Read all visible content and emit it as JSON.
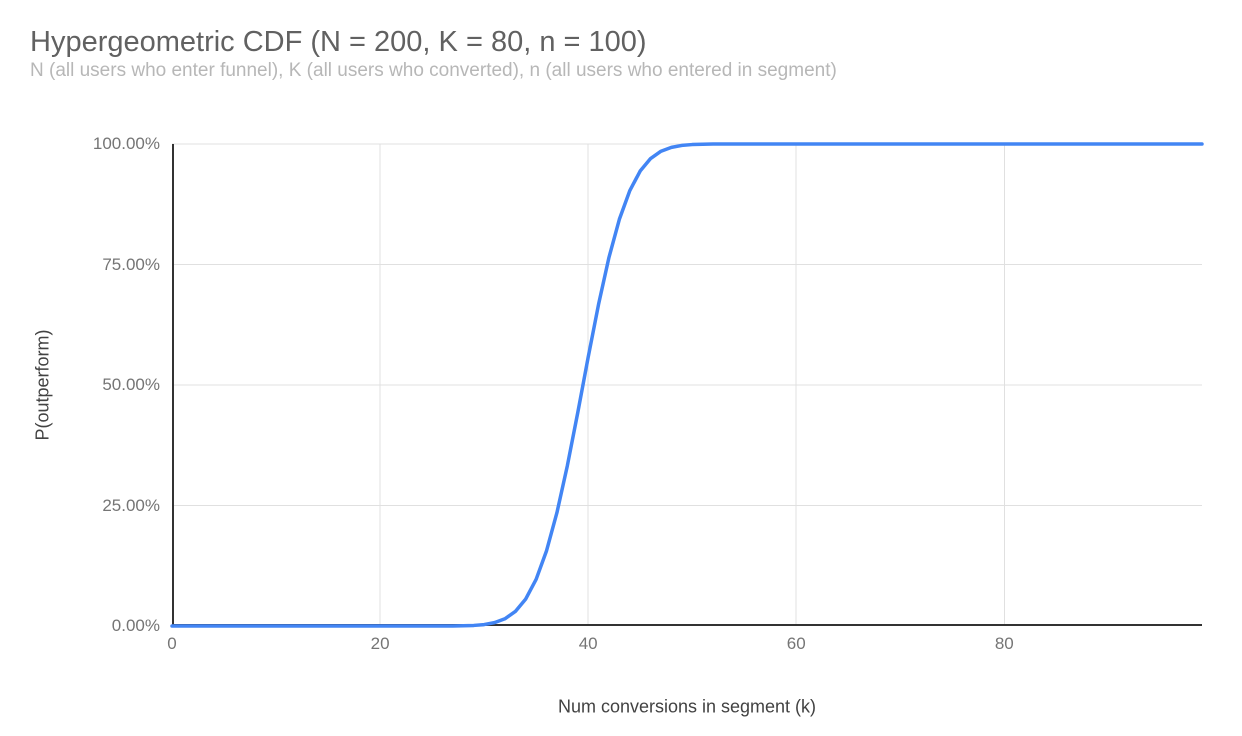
{
  "chart_data": {
    "type": "line",
    "title": "Hypergeometric CDF (N = 200, K = 80, n = 100)",
    "subtitle": "N (all users who enter funnel), K (all users who converted), n (all users who entered in segment)",
    "xlabel": "Num conversions in segment (k)",
    "ylabel": "P(outperform)",
    "xlim": [
      0,
      99
    ],
    "ylim": [
      0,
      1
    ],
    "grid": true,
    "legend": "none",
    "x_ticks": [
      0,
      20,
      40,
      60,
      80
    ],
    "x_tick_labels": [
      "0",
      "20",
      "40",
      "60",
      "80"
    ],
    "y_ticks": [
      0,
      0.25,
      0.5,
      0.75,
      1
    ],
    "y_tick_labels": [
      "0.00%",
      "25.00%",
      "50.00%",
      "75.00%",
      "100.00%"
    ],
    "series": [
      {
        "name": "P(outperform)",
        "x": [
          0,
          1,
          2,
          3,
          4,
          5,
          6,
          7,
          8,
          9,
          10,
          11,
          12,
          13,
          14,
          15,
          16,
          17,
          18,
          19,
          20,
          21,
          22,
          23,
          24,
          25,
          26,
          27,
          28,
          29,
          30,
          31,
          32,
          33,
          34,
          35,
          36,
          37,
          38,
          39,
          40,
          41,
          42,
          43,
          44,
          45,
          46,
          47,
          48,
          49,
          50,
          51,
          52,
          53,
          54,
          55,
          56,
          57,
          58,
          59,
          60,
          61,
          62,
          63,
          64,
          65,
          66,
          67,
          68,
          69,
          70,
          71,
          72,
          73,
          74,
          75,
          76,
          77,
          78,
          79,
          80,
          81,
          82,
          83,
          84,
          85,
          86,
          87,
          88,
          89,
          90,
          91,
          92,
          93,
          94,
          95,
          96,
          97,
          98,
          99
        ],
        "y": [
          0,
          0,
          0,
          0,
          0,
          0,
          0,
          0,
          0,
          0,
          0,
          0,
          0,
          0,
          0,
          0,
          0,
          0,
          0,
          0,
          0,
          0,
          0,
          0,
          0,
          1e-05,
          3e-05,
          0.00013,
          0.00041,
          0.00116,
          0.00296,
          0.00694,
          0.01503,
          0.03014,
          0.05604,
          0.0969,
          0.15618,
          0.23532,
          0.33258,
          0.44265,
          0.55735,
          0.66742,
          0.76468,
          0.84382,
          0.9031,
          0.94396,
          0.96986,
          0.98497,
          0.99306,
          0.99704,
          0.99884,
          0.99959,
          0.99987,
          0.99997,
          0.99999,
          1,
          1,
          1,
          1,
          1,
          1,
          1,
          1,
          1,
          1,
          1,
          1,
          1,
          1,
          1,
          1,
          1,
          1,
          1,
          1,
          1,
          1,
          1,
          1,
          1,
          1,
          1,
          1,
          1,
          1,
          1,
          1,
          1,
          1,
          1,
          1,
          1,
          1,
          1,
          1,
          1,
          1,
          1,
          1,
          1
        ]
      }
    ],
    "colors": {
      "series_line": "#4285f4",
      "gridline": "#e0e0e0",
      "axis_line": "#333333",
      "title_text": "#616161",
      "subtitle_text": "#b7b7b7",
      "tick_text": "#757575",
      "axis_title_text": "#424242",
      "background": "#ffffff"
    }
  }
}
